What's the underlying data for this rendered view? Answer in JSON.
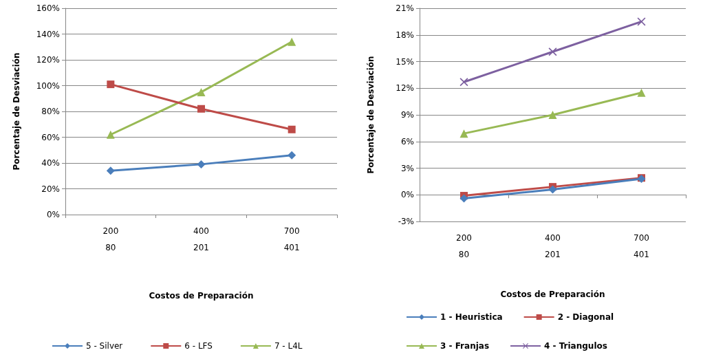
{
  "chart_data": [
    {
      "type": "line",
      "xlabel": "Costos de Preparación",
      "ylabel": "Porcentaje de Desviación",
      "categories": [
        "200\n\n80",
        "400\n\n201",
        "700\n\n401"
      ],
      "series": [
        {
          "name": "5 - Silver",
          "color": "#4a7ebb",
          "marker": "diamond",
          "values": [
            34,
            39,
            46
          ]
        },
        {
          "name": "6 - LFS",
          "color": "#be4b48",
          "marker": "square",
          "values": [
            101,
            82,
            66
          ]
        },
        {
          "name": "7 - L4L",
          "color": "#98b954",
          "marker": "triangle",
          "values": [
            62,
            95,
            134
          ]
        }
      ],
      "ylim": [
        0,
        160
      ],
      "yticks": [
        {
          "value": 0,
          "label": "0%"
        },
        {
          "value": 20,
          "label": "20%"
        },
        {
          "value": 40,
          "label": "40%"
        },
        {
          "value": 60,
          "label": "60%"
        },
        {
          "value": 80,
          "label": "80%"
        },
        {
          "value": 100,
          "label": "100%"
        },
        {
          "value": 120,
          "label": "120%"
        },
        {
          "value": 140,
          "label": "140%"
        },
        {
          "value": 160,
          "label": "160%"
        }
      ],
      "grid": "y",
      "legend": "bottom"
    },
    {
      "type": "line",
      "xlabel": "Costos de Preparación",
      "ylabel": "Porcentaje de Desviación",
      "categories": [
        "200\n\n80",
        "400\n\n201",
        "700\n\n401"
      ],
      "series": [
        {
          "name": "1 - Heuristica",
          "color": "#4a7ebb",
          "marker": "diamond",
          "values": [
            -0.4,
            0.6,
            1.8
          ]
        },
        {
          "name": "2 - Diagonal",
          "color": "#be4b48",
          "marker": "square",
          "values": [
            -0.1,
            0.9,
            1.9
          ]
        },
        {
          "name": "3 - Franjas",
          "color": "#98b954",
          "marker": "triangle",
          "values": [
            6.9,
            9.0,
            11.5
          ]
        },
        {
          "name": "4 - Triangulos",
          "color": "#7d60a0",
          "marker": "cross",
          "values": [
            12.7,
            16.1,
            19.5
          ]
        }
      ],
      "ylim": [
        -3,
        21
      ],
      "yticks": [
        {
          "value": -3,
          "label": "-3%"
        },
        {
          "value": 0,
          "label": "0%"
        },
        {
          "value": 3,
          "label": "3%"
        },
        {
          "value": 6,
          "label": "6%"
        },
        {
          "value": 9,
          "label": "9%"
        },
        {
          "value": 12,
          "label": "12%"
        },
        {
          "value": 15,
          "label": "15%"
        },
        {
          "value": 18,
          "label": "18%"
        },
        {
          "value": 21,
          "label": "21%"
        }
      ],
      "grid": "y",
      "legend": "bottom"
    }
  ]
}
